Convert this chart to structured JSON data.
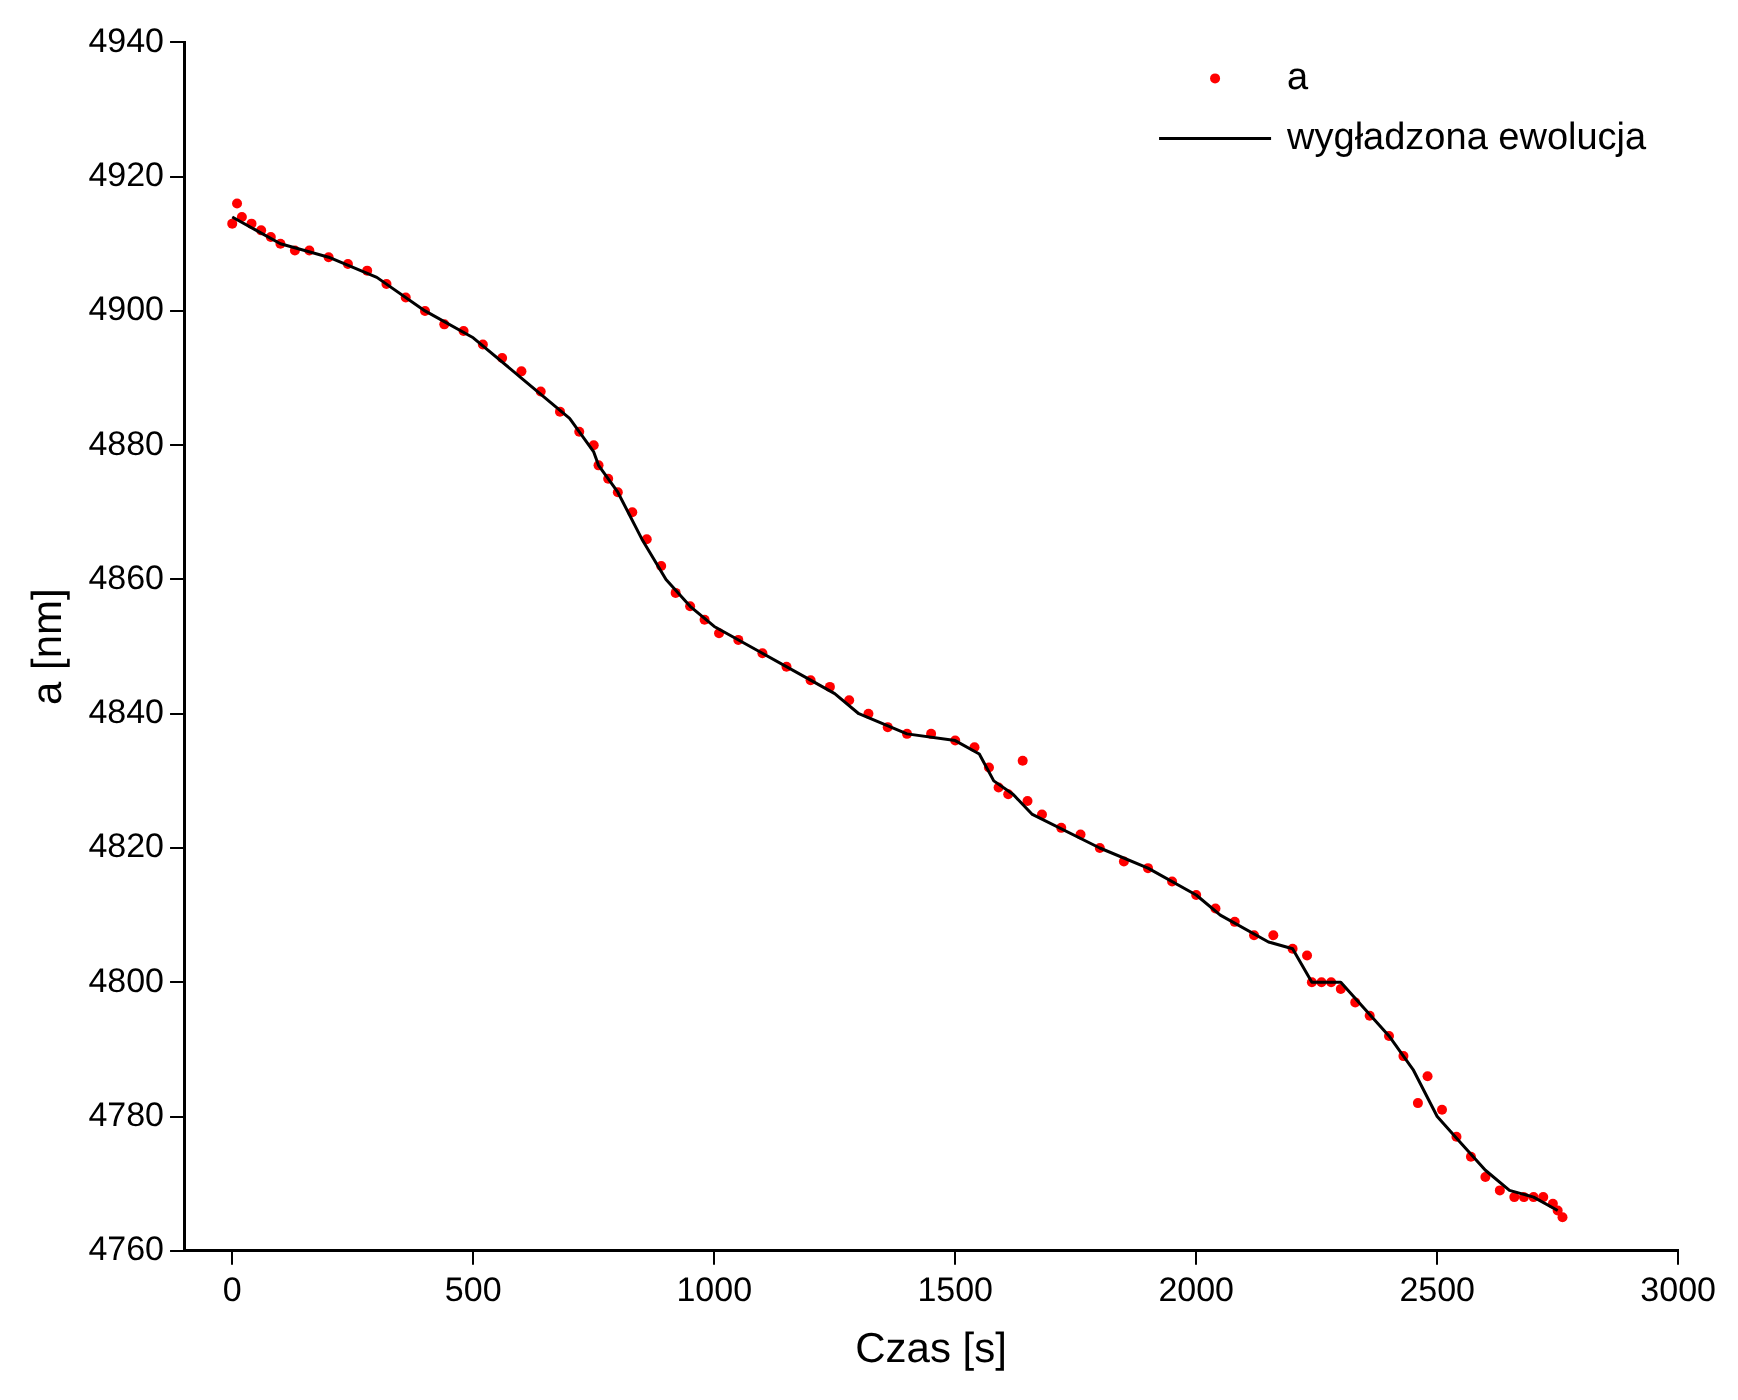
{
  "chart_data": {
    "type": "scatter",
    "xlabel": "Czas [s]",
    "ylabel": "a [nm]",
    "xlim": [
      -100,
      3000
    ],
    "xticks": [
      0,
      500,
      1000,
      1500,
      2000,
      2500,
      3000
    ],
    "ylim": [
      4760,
      4940
    ],
    "yticks": [
      4760,
      4780,
      4800,
      4820,
      4840,
      4860,
      4880,
      4900,
      4920,
      4940
    ],
    "grid": false,
    "legend": "top right",
    "series": [
      {
        "name": "a",
        "marker": "circle",
        "color": "#ff0000",
        "x": [
          0,
          10,
          20,
          40,
          60,
          80,
          100,
          130,
          160,
          200,
          240,
          280,
          320,
          360,
          400,
          440,
          480,
          520,
          560,
          600,
          640,
          680,
          720,
          750,
          760,
          780,
          800,
          830,
          860,
          890,
          920,
          950,
          980,
          1010,
          1050,
          1100,
          1150,
          1200,
          1240,
          1280,
          1320,
          1360,
          1400,
          1450,
          1500,
          1540,
          1570,
          1590,
          1610,
          1640,
          1650,
          1680,
          1720,
          1760,
          1800,
          1850,
          1900,
          1950,
          2000,
          2040,
          2080,
          2120,
          2160,
          2200,
          2230,
          2240,
          2260,
          2280,
          2300,
          2330,
          2360,
          2400,
          2430,
          2460,
          2480,
          2510,
          2540,
          2570,
          2600,
          2630,
          2660,
          2680,
          2700,
          2720,
          2740,
          2750,
          2760
        ],
        "values": [
          4913,
          4916,
          4914,
          4913,
          4912,
          4911,
          4910,
          4909,
          4909,
          4908,
          4907,
          4906,
          4904,
          4902,
          4900,
          4898,
          4897,
          4895,
          4893,
          4891,
          4888,
          4885,
          4882,
          4880,
          4877,
          4875,
          4873,
          4870,
          4866,
          4862,
          4858,
          4856,
          4854,
          4852,
          4851,
          4849,
          4847,
          4845,
          4844,
          4842,
          4840,
          4838,
          4837,
          4837,
          4836,
          4835,
          4832,
          4829,
          4828,
          4833,
          4827,
          4825,
          4823,
          4822,
          4820,
          4818,
          4817,
          4815,
          4813,
          4811,
          4809,
          4807,
          4807,
          4805,
          4804,
          4800,
          4800,
          4800,
          4799,
          4797,
          4795,
          4792,
          4789,
          4782,
          4786,
          4781,
          4777,
          4774,
          4771,
          4769,
          4768,
          4768,
          4768,
          4768,
          4767,
          4766,
          4765
        ]
      },
      {
        "name": "wygładzona ewolucja",
        "type": "line",
        "marker": "none",
        "line_style": "solid",
        "color": "#000000",
        "x": [
          0,
          50,
          100,
          200,
          300,
          400,
          500,
          600,
          700,
          750,
          760,
          800,
          850,
          900,
          950,
          1000,
          1100,
          1200,
          1250,
          1300,
          1400,
          1500,
          1550,
          1580,
          1620,
          1660,
          1800,
          1900,
          2000,
          2050,
          2150,
          2200,
          2240,
          2300,
          2400,
          2450,
          2500,
          2550,
          2600,
          2650,
          2700,
          2750
        ],
        "values": [
          4914,
          4912,
          4910,
          4908,
          4905,
          4900,
          4896,
          4890,
          4884,
          4879,
          4877,
          4873,
          4866,
          4860,
          4856,
          4853,
          4849,
          4845,
          4843,
          4840,
          4837,
          4836,
          4834,
          4830,
          4828,
          4825,
          4820,
          4817,
          4813,
          4810,
          4806,
          4805,
          4800,
          4800,
          4792,
          4787,
          4780,
          4776,
          4772,
          4769,
          4768,
          4766
        ]
      }
    ]
  }
}
